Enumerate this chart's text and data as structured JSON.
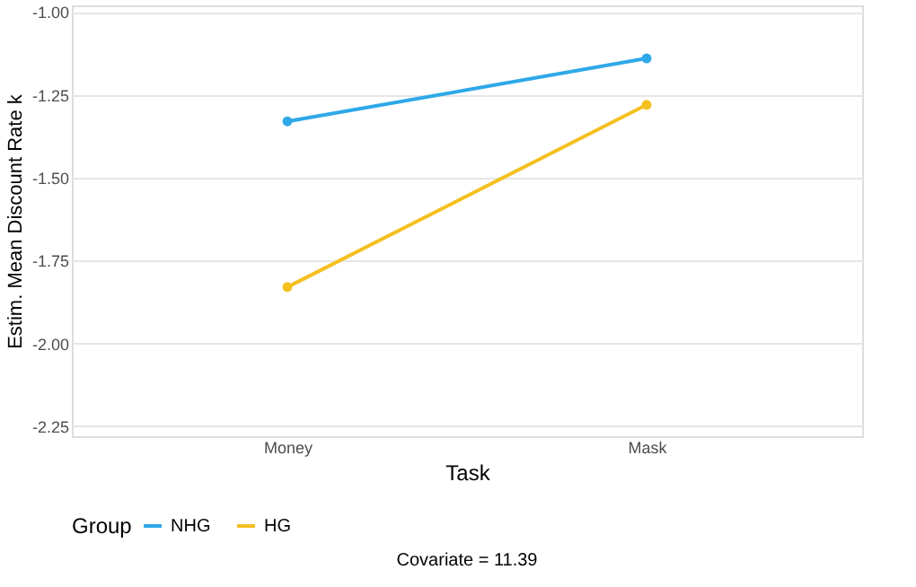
{
  "chart_data": {
    "type": "line",
    "xlabel": "Task",
    "ylabel": "Estim. Mean Discount Rate k",
    "legend_title": "Group",
    "categories": [
      "Money",
      "Mask"
    ],
    "series": [
      {
        "name": "NHG",
        "color": "#2ea8e8",
        "values": [
          -1.33,
          -1.14
        ]
      },
      {
        "name": "HG",
        "color": "#f4c020",
        "values": [
          -1.83,
          -1.28
        ]
      }
    ],
    "ylim": [
      -2.28,
      -0.98
    ],
    "yticks": [
      {
        "value": -1.0,
        "label": "-1.00"
      },
      {
        "value": -1.25,
        "label": "-1.25"
      },
      {
        "value": -1.5,
        "label": "-1.50"
      },
      {
        "value": -1.75,
        "label": "-1.75"
      },
      {
        "value": -2.0,
        "label": "-2.00"
      },
      {
        "value": -2.25,
        "label": "-2.25"
      }
    ],
    "grid": "y",
    "legend": "bottom",
    "marker": "circle",
    "line_style": "solid",
    "annotations": [
      "Covariate = 11.39"
    ]
  }
}
